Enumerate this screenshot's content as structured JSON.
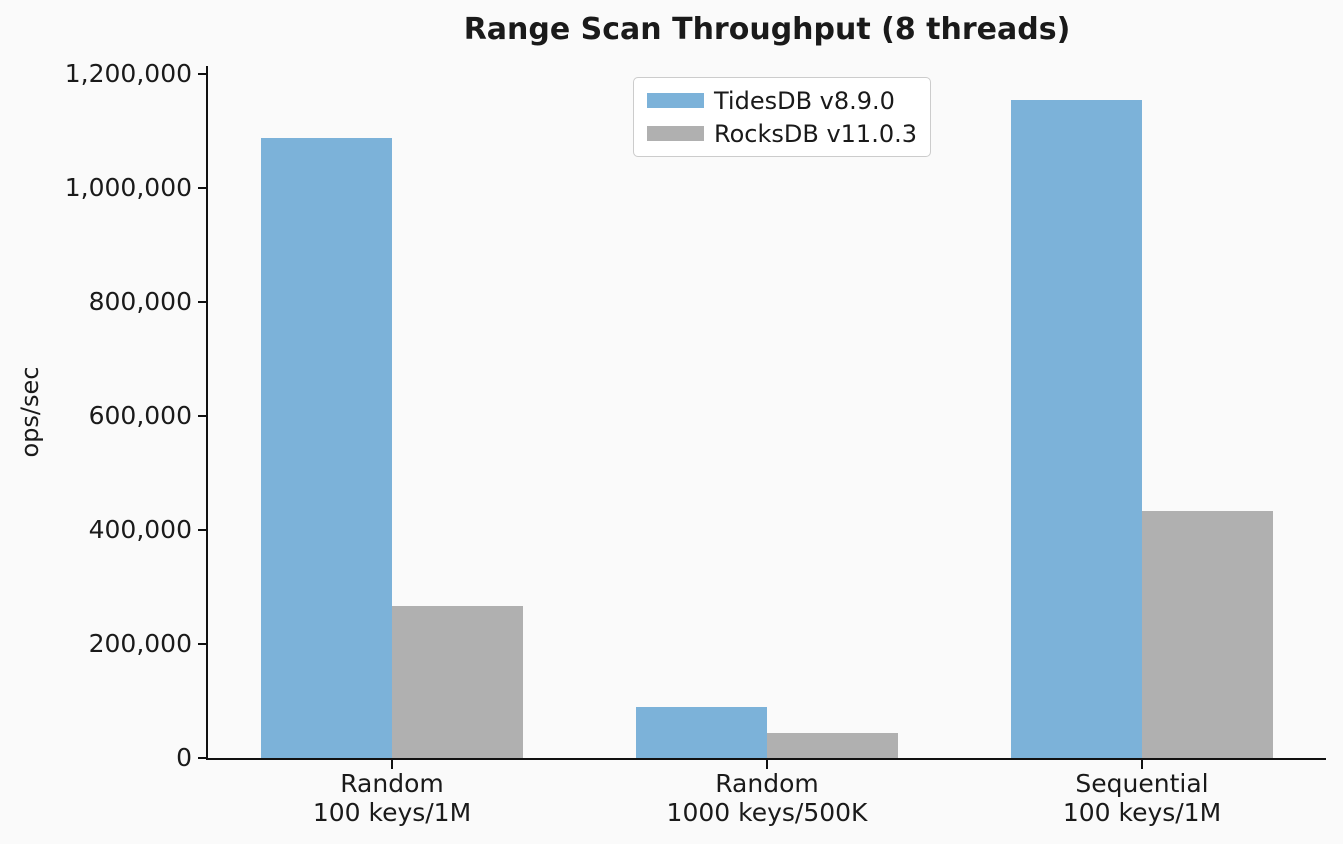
{
  "chart_data": {
    "type": "bar",
    "title": "Range Scan Throughput (8 threads)",
    "ylabel": "ops/sec",
    "xlabel": "",
    "ylim": [
      0,
      1200000
    ],
    "ytick_step": 200000,
    "ytick_labels": [
      "0",
      "200,000",
      "400,000",
      "600,000",
      "800,000",
      "1,000,000",
      "1,200,000"
    ],
    "categories": [
      {
        "line1": "Random",
        "line2": "100 keys/1M"
      },
      {
        "line1": "Random",
        "line2": "1000 keys/500K"
      },
      {
        "line1": "Sequential",
        "line2": "100 keys/1M"
      }
    ],
    "series": [
      {
        "name": "TidesDB v8.9.0",
        "color": "#7cb2d9",
        "values": [
          1087000,
          89500,
          1154000
        ]
      },
      {
        "name": "RocksDB v11.0.3",
        "color": "#b0b0b0",
        "values": [
          267000,
          44000,
          433000
        ]
      }
    ],
    "legend_position": "upper center",
    "grid": false,
    "colors": {
      "background": "#fafafa",
      "text": "#1a1a1a",
      "spine": "#111111",
      "legend_border": "#cccccc",
      "legend_background": "#ffffff",
      "series_blue": "#7cb2d9",
      "series_gray": "#b0b0b0"
    }
  }
}
